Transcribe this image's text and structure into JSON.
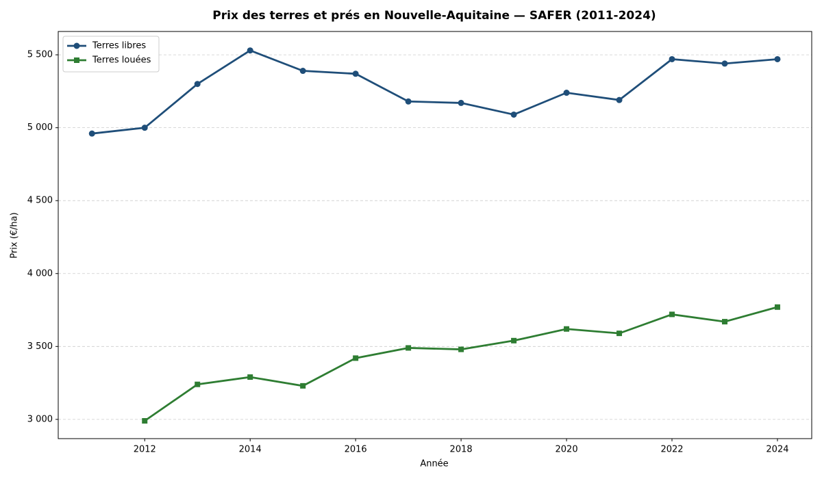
{
  "chart_data": {
    "type": "line",
    "title": "Prix des terres et prés en Nouvelle-Aquitaine — SAFER (2011-2024)",
    "xlabel": "Année",
    "ylabel": "Prix (€/ha)",
    "x": [
      2011,
      2012,
      2013,
      2014,
      2015,
      2016,
      2017,
      2018,
      2019,
      2020,
      2021,
      2022,
      2023,
      2024
    ],
    "series": [
      {
        "name": "Terres libres",
        "color": "#1f4e79",
        "marker": "circle",
        "values": [
          4960,
          5000,
          5300,
          5530,
          5390,
          5370,
          5180,
          5170,
          5090,
          5240,
          5190,
          5470,
          5440,
          5470
        ]
      },
      {
        "name": "Terres louées",
        "color": "#2e7d32",
        "marker": "square",
        "values": [
          null,
          2990,
          3240,
          3290,
          3230,
          3420,
          3490,
          3480,
          3540,
          3620,
          3590,
          3720,
          3670,
          3770
        ]
      }
    ],
    "xlim": [
      2010.36,
      2024.65
    ],
    "xticks": [
      2012,
      2014,
      2016,
      2018,
      2020,
      2022,
      2024
    ],
    "ylim": [
      2868,
      5660
    ],
    "yticks": [
      {
        "value": 3000,
        "label": "3 000"
      },
      {
        "value": 3500,
        "label": "3 500"
      },
      {
        "value": 4000,
        "label": "4 000"
      },
      {
        "value": 4500,
        "label": "4 500"
      },
      {
        "value": 5000,
        "label": "5 000"
      },
      {
        "value": 5500,
        "label": "5 500"
      }
    ],
    "grid": true,
    "legend": "upper-left"
  }
}
